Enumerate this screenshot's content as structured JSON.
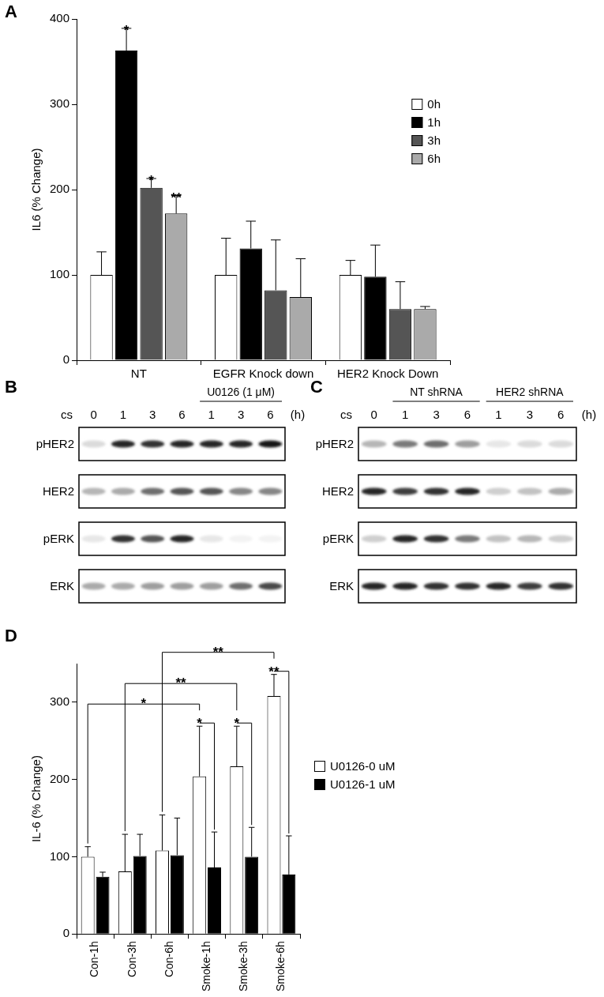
{
  "chart_data": [
    {
      "type": "bar",
      "panel_label": "A",
      "y_label": "IL6 (% Change)",
      "categories": [
        "NT",
        "EGFR Knock down",
        "HER2 Knock Down"
      ],
      "series": [
        {
          "name": "0h",
          "color": "#ffffff",
          "values": [
            100,
            100,
            100
          ],
          "errors": [
            27,
            43,
            17
          ]
        },
        {
          "name": "1h",
          "color": "#000000",
          "values": [
            363,
            131,
            98
          ],
          "errors": [
            26,
            32,
            37
          ],
          "significance": [
            "*",
            null,
            null
          ]
        },
        {
          "name": "3h",
          "color": "#555555",
          "values": [
            202,
            82,
            60
          ],
          "errors": [
            11,
            59,
            32
          ],
          "significance": [
            "*",
            null,
            null
          ]
        },
        {
          "name": "6h",
          "color": "#aaaaaa",
          "values": [
            172,
            74,
            60
          ],
          "errors": [
            21,
            45,
            3
          ],
          "significance": [
            "**",
            null,
            null
          ]
        }
      ],
      "ylim": [
        0,
        400
      ],
      "yticks": [
        0,
        100,
        200,
        300,
        400
      ],
      "grid": false,
      "legend": "upper right"
    },
    {
      "type": "bar",
      "panel_label": "D",
      "y_label": "IL-6 (% Change)",
      "categories": [
        "Con-1h",
        "Con-3h",
        "Con-6h",
        "Smoke-1h",
        "Smoke-3h",
        "Smoke-6h"
      ],
      "series": [
        {
          "name": "U0126-0 uM",
          "color": "#ffffff",
          "values": [
            100,
            81,
            108,
            204,
            217,
            308
          ],
          "errors": [
            13,
            48,
            46,
            65,
            52,
            28
          ]
        },
        {
          "name": "U0126-1 uM",
          "color": "#000000",
          "values": [
            74,
            101,
            102,
            86,
            100,
            77
          ],
          "errors": [
            6,
            28,
            48,
            46,
            38,
            50
          ]
        }
      ],
      "comparisons": [
        {
          "from": {
            "category": "Smoke-1h",
            "series": "U0126-0 uM"
          },
          "to": {
            "category": "Smoke-1h",
            "series": "U0126-1 uM"
          },
          "label": "*"
        },
        {
          "from": {
            "category": "Smoke-3h",
            "series": "U0126-0 uM"
          },
          "to": {
            "category": "Smoke-3h",
            "series": "U0126-1 uM"
          },
          "label": "*"
        },
        {
          "from": {
            "category": "Smoke-6h",
            "series": "U0126-0 uM"
          },
          "to": {
            "category": "Smoke-6h",
            "series": "U0126-1 uM"
          },
          "label": "**"
        },
        {
          "from": {
            "category": "Con-1h",
            "series": "U0126-0 uM"
          },
          "to": {
            "category": "Smoke-1h",
            "series": "U0126-0 uM"
          },
          "label": "*"
        },
        {
          "from": {
            "category": "Con-3h",
            "series": "U0126-0 uM"
          },
          "to": {
            "category": "Smoke-3h",
            "series": "U0126-0 uM"
          },
          "label": "**"
        },
        {
          "from": {
            "category": "Con-6h",
            "series": "U0126-0 uM"
          },
          "to": {
            "category": "Smoke-6h",
            "series": "U0126-0 uM"
          },
          "label": "**"
        }
      ],
      "ylim": [
        0,
        350
      ],
      "yticks": [
        0,
        100,
        200,
        300
      ],
      "grid": false,
      "legend": "right"
    }
  ],
  "blots": [
    {
      "panel_label": "B",
      "treatment": "cs",
      "unit": "(h)",
      "lanes": [
        "0",
        "1",
        "3",
        "6",
        "1",
        "3",
        "6"
      ],
      "groups": [
        {
          "label": "U0126 (1 μM)",
          "lanes": [
            5,
            6,
            7
          ]
        }
      ],
      "rows": [
        {
          "label": "pHER2",
          "bands": [
            0.15,
            0.9,
            0.85,
            0.9,
            0.9,
            0.9,
            0.95
          ]
        },
        {
          "label": "HER2",
          "bands": [
            0.3,
            0.35,
            0.6,
            0.7,
            0.7,
            0.5,
            0.5
          ]
        },
        {
          "label": "pERK",
          "bands": [
            0.1,
            0.85,
            0.7,
            0.9,
            0.1,
            0.05,
            0.05
          ]
        },
        {
          "label": "ERK",
          "bands": [
            0.35,
            0.35,
            0.4,
            0.4,
            0.4,
            0.6,
            0.75
          ]
        }
      ]
    },
    {
      "panel_label": "C",
      "treatment": "cs",
      "unit": "(h)",
      "lanes": [
        "0",
        "1",
        "3",
        "6",
        "1",
        "3",
        "6"
      ],
      "groups": [
        {
          "label": "NT shRNA",
          "lanes": [
            2,
            3,
            4
          ]
        },
        {
          "label": "HER2 shRNA",
          "lanes": [
            5,
            6,
            7
          ]
        }
      ],
      "rows": [
        {
          "label": "pHER2",
          "bands": [
            0.3,
            0.55,
            0.6,
            0.4,
            0.1,
            0.15,
            0.15
          ]
        },
        {
          "label": "HER2",
          "bands": [
            0.9,
            0.8,
            0.85,
            0.9,
            0.2,
            0.25,
            0.35
          ]
        },
        {
          "label": "pERK",
          "bands": [
            0.2,
            0.9,
            0.85,
            0.55,
            0.25,
            0.3,
            0.2
          ]
        },
        {
          "label": "ERK",
          "bands": [
            0.9,
            0.9,
            0.85,
            0.85,
            0.9,
            0.8,
            0.85
          ]
        }
      ]
    }
  ]
}
